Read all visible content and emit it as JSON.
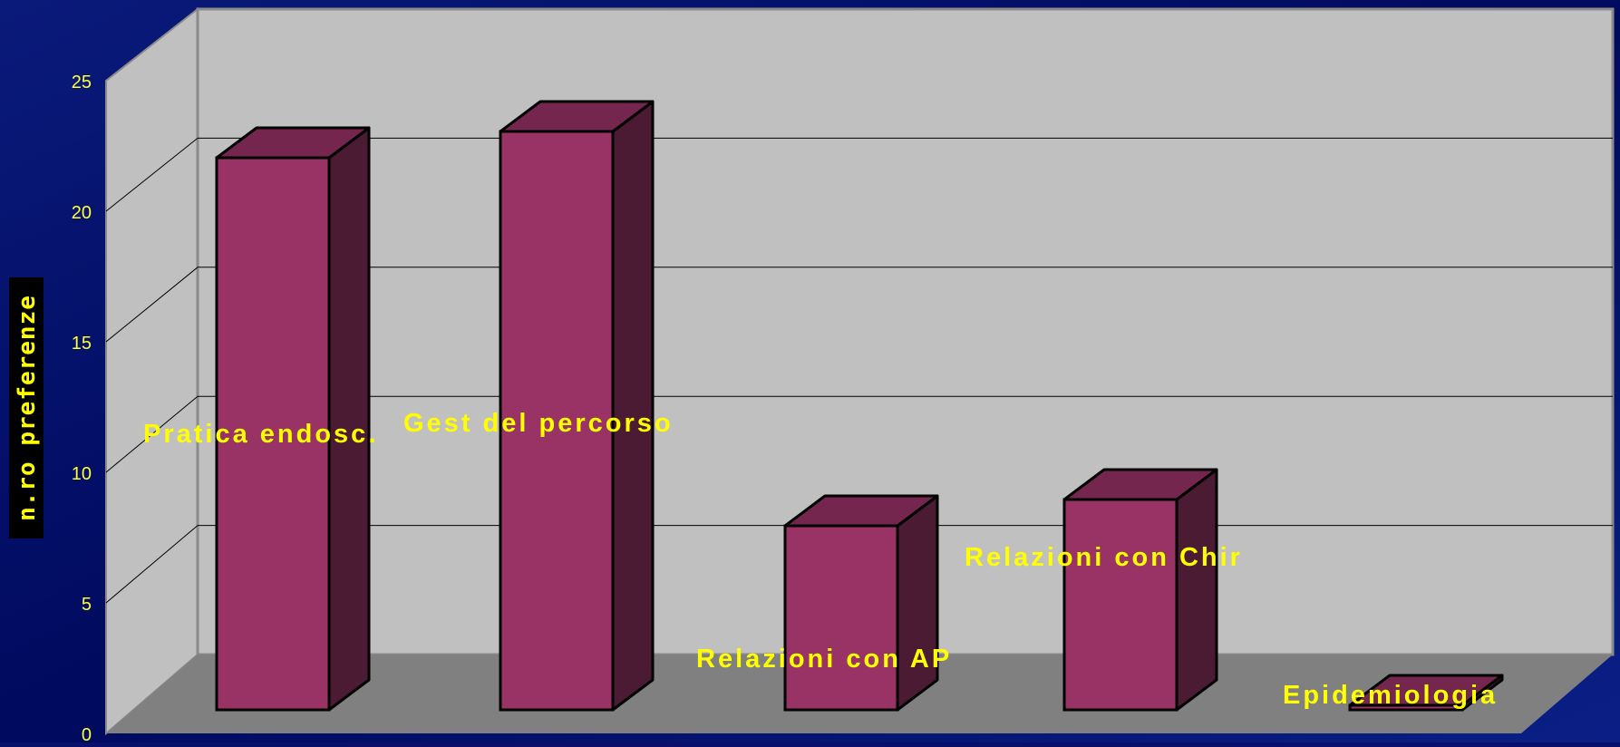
{
  "chart_data": {
    "type": "bar",
    "categories": [
      "Pratica endosc.",
      "Gest del percorso",
      "Relazioni con AP",
      "Relazioni con Chir",
      "Epidemiologia"
    ],
    "values": [
      21,
      22,
      7,
      8,
      0
    ],
    "ylabel": "n.ro preferenze",
    "xlabel": "",
    "title": "",
    "ylim": [
      0,
      25
    ],
    "yticks": [
      0,
      5,
      10,
      15,
      20,
      25
    ],
    "grid": true,
    "three_d": true,
    "colors": {
      "background": "#0a0f6b",
      "wall": "#c0c0c0",
      "floor": "#808080",
      "bar_front": "#993366",
      "bar_top": "#74264f",
      "bar_side": "#4b1a33",
      "labels": "#ffff00"
    }
  }
}
